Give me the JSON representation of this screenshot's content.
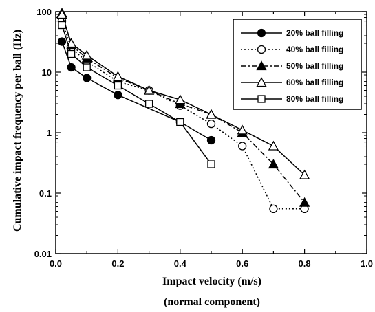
{
  "chart_data": {
    "type": "line",
    "title": "",
    "xlabel": "Impact velocity (m/s)",
    "xlabel_sub": "(normal component)",
    "ylabel": "Cumulative impact frequency per ball (Hz)",
    "xlim": [
      0,
      1.0
    ],
    "ylim": [
      0.01,
      100
    ],
    "yscale": "log",
    "grid": false,
    "legend_position": "top-right",
    "x_ticks": [
      "0.0",
      "0.2",
      "0.4",
      "0.6",
      "0.8",
      "1.0"
    ],
    "y_ticks": [
      "0.01",
      "0.1",
      "1",
      "10",
      "100"
    ],
    "series": [
      {
        "name": "20% ball filling",
        "marker": "filled-circle",
        "dash": "solid",
        "points": [
          [
            0.02,
            32
          ],
          [
            0.05,
            12
          ],
          [
            0.1,
            8
          ],
          [
            0.2,
            4.2
          ],
          [
            0.4,
            1.5
          ],
          [
            0.5,
            0.75
          ]
        ]
      },
      {
        "name": "40% ball filling",
        "marker": "open-circle",
        "dash": "dotted",
        "points": [
          [
            0.02,
            70
          ],
          [
            0.05,
            25
          ],
          [
            0.1,
            15
          ],
          [
            0.2,
            7
          ],
          [
            0.3,
            5
          ],
          [
            0.4,
            2.8
          ],
          [
            0.5,
            1.4
          ],
          [
            0.6,
            0.6
          ],
          [
            0.7,
            0.055
          ],
          [
            0.8,
            0.055
          ]
        ]
      },
      {
        "name": "50% ball filling",
        "marker": "filled-triangle",
        "dash": "dashdot",
        "points": [
          [
            0.02,
            95
          ],
          [
            0.05,
            28
          ],
          [
            0.1,
            17
          ],
          [
            0.2,
            8
          ],
          [
            0.3,
            5
          ],
          [
            0.4,
            3
          ],
          [
            0.5,
            2
          ],
          [
            0.6,
            1
          ],
          [
            0.7,
            0.3
          ],
          [
            0.8,
            0.07
          ]
        ]
      },
      {
        "name": "60% ball filling",
        "marker": "open-triangle",
        "dash": "solid",
        "points": [
          [
            0.02,
            90
          ],
          [
            0.05,
            30
          ],
          [
            0.1,
            19
          ],
          [
            0.2,
            8.5
          ],
          [
            0.3,
            5
          ],
          [
            0.4,
            3.5
          ],
          [
            0.5,
            2
          ],
          [
            0.6,
            1.1
          ],
          [
            0.7,
            0.6
          ],
          [
            0.8,
            0.2
          ]
        ]
      },
      {
        "name": "80% ball filling",
        "marker": "open-square",
        "dash": "solid",
        "points": [
          [
            0.02,
            60
          ],
          [
            0.05,
            20
          ],
          [
            0.1,
            12
          ],
          [
            0.2,
            6
          ],
          [
            0.3,
            3
          ],
          [
            0.4,
            1.5
          ],
          [
            0.5,
            0.3
          ]
        ]
      }
    ]
  }
}
